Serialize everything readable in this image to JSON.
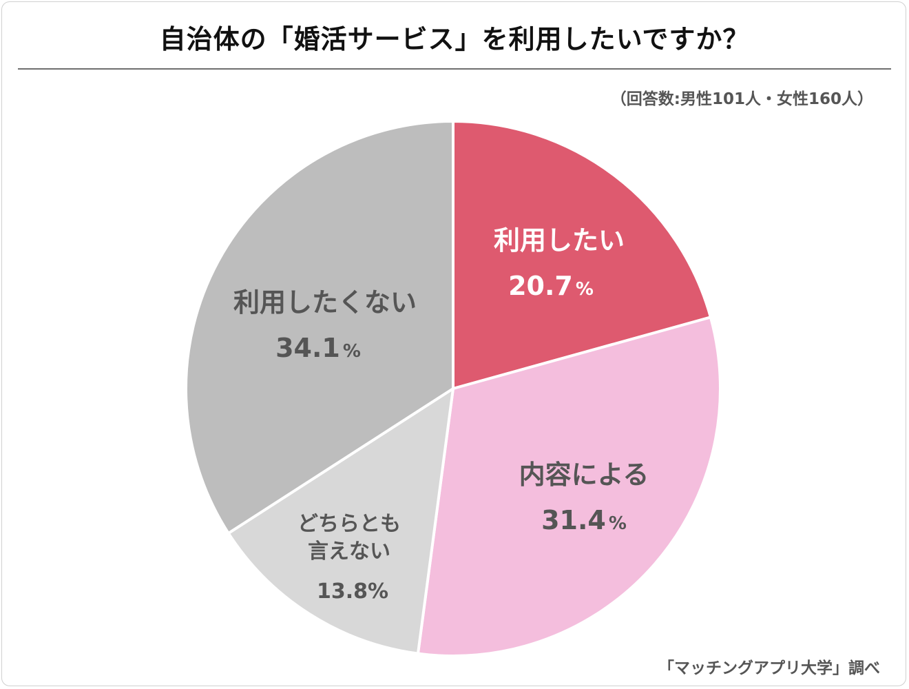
{
  "header": {
    "title": "自治体の「婚活サービス」を利用したいですか？",
    "note": "（回答数:男性101人・女性160人）"
  },
  "footer": {
    "source": "「マッチングアプリ大学」調べ"
  },
  "colors": {
    "want": "#de5a6f",
    "depends": "#f4bedd",
    "neither": "#d8d8d8",
    "dont_want": "#bdbdbd",
    "dark_text": "#555555",
    "light_text": "#ffffff"
  },
  "chart_data": {
    "type": "pie",
    "title": "自治体の「婚活サービス」を利用したいですか？",
    "unit": "%",
    "slices": [
      {
        "label": "利用したい",
        "value": 20.7,
        "value_text": "20.7",
        "color": "#de5a6f",
        "text_color": "#ffffff"
      },
      {
        "label": "内容による",
        "value": 31.4,
        "value_text": "31.4",
        "color": "#f4bedd",
        "text_color": "#555555"
      },
      {
        "label": "どちらとも言えない",
        "label_lines": [
          "どちらとも",
          "言えない"
        ],
        "value": 13.8,
        "value_text": "13.8%",
        "color": "#d8d8d8",
        "text_color": "#555555"
      },
      {
        "label": "利用したくない",
        "value": 34.1,
        "value_text": "34.1",
        "color": "#bdbdbd",
        "text_color": "#555555"
      }
    ]
  }
}
